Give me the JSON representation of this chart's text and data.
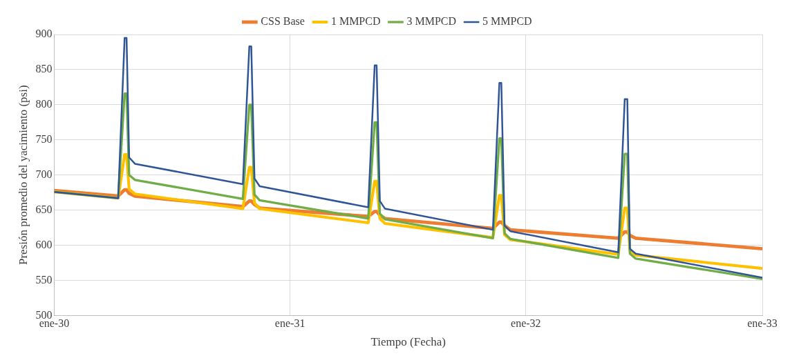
{
  "chart_data": {
    "type": "line",
    "xlabel": "Tiempo (Fecha)",
    "ylabel": "Presión promedio del yacimiento (psi)",
    "x": [
      "2030-01-01",
      "2030-04-10",
      "2030-04-20",
      "2030-04-23",
      "2030-04-27",
      "2030-05-06",
      "2030-10-20",
      "2030-10-30",
      "2030-11-02",
      "2030-11-07",
      "2030-11-15",
      "2031-05-02",
      "2031-05-12",
      "2031-05-15",
      "2031-05-20",
      "2031-05-28",
      "2031-11-11",
      "2031-11-21",
      "2031-11-24",
      "2031-11-29",
      "2031-12-08",
      "2032-05-23",
      "2032-06-02",
      "2032-06-06",
      "2032-06-10",
      "2032-06-19",
      "2033-01-01"
    ],
    "series": [
      {
        "name": "CSS Base",
        "color": "#ed7d31",
        "values": [
          678,
          670,
          679,
          679,
          674,
          670,
          655,
          663,
          663,
          658,
          653,
          641,
          648,
          648,
          643,
          638,
          624,
          633,
          633,
          628,
          622,
          610,
          619,
          619,
          614,
          610,
          595
        ]
      },
      {
        "name": "1 MMPCD",
        "color": "#ffc000",
        "values": [
          676,
          667,
          729,
          729,
          680,
          673,
          652,
          711,
          711,
          660,
          652,
          632,
          691,
          691,
          638,
          631,
          611,
          671,
          671,
          615,
          608,
          587,
          653,
          653,
          592,
          586,
          567
        ]
      },
      {
        "name": "3 MMPCD",
        "color": "#70ad47",
        "values": [
          676,
          667,
          816,
          816,
          700,
          693,
          666,
          800,
          800,
          672,
          664,
          638,
          775,
          775,
          645,
          637,
          610,
          752,
          752,
          617,
          609,
          582,
          730,
          730,
          588,
          581,
          552
        ]
      },
      {
        "name": "5 MMPCD",
        "color": "#2f5597",
        "values": [
          676,
          667,
          895,
          895,
          725,
          716,
          687,
          883,
          883,
          695,
          684,
          654,
          856,
          856,
          663,
          652,
          622,
          831,
          831,
          628,
          620,
          590,
          808,
          808,
          595,
          588,
          554
        ]
      }
    ],
    "xlim": [
      "2030-01-01",
      "2033-01-01"
    ],
    "xticks": [
      {
        "value": "2030-01-01",
        "label": "ene-30"
      },
      {
        "value": "2031-01-01",
        "label": "ene-31"
      },
      {
        "value": "2032-01-01",
        "label": "ene-32"
      },
      {
        "value": "2033-01-01",
        "label": "ene-33"
      }
    ],
    "ylim": [
      500,
      900
    ],
    "yticks": [
      500,
      550,
      600,
      650,
      700,
      750,
      800,
      850,
      900
    ],
    "grid": true,
    "legend": "top",
    "marker": "none",
    "line_style": "solid"
  }
}
